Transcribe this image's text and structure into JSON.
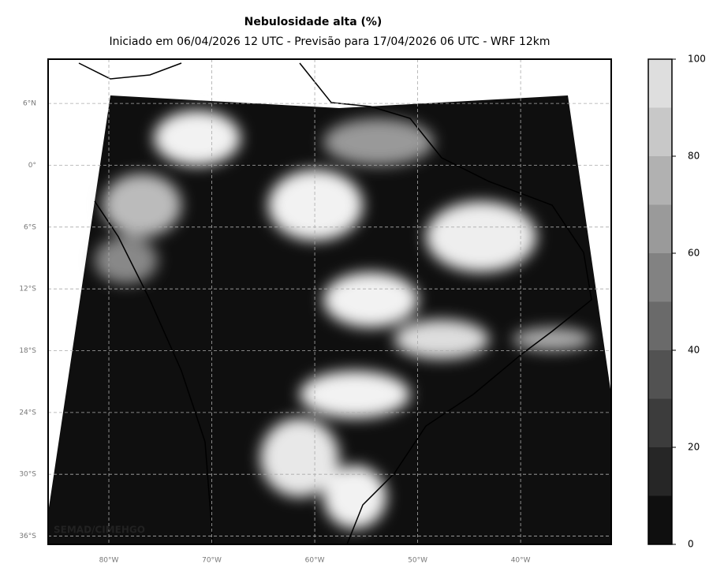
{
  "title": "Nebulosidade alta (%)",
  "subtitle": "Iniciado em 06/04/2026 12 UTC - Previsão para 17/04/2026 06 UTC - WRF 12km",
  "watermark": "SEMAD/CIMEHGO",
  "map": {
    "xlim": [
      -85.9,
      -31.2
    ],
    "ylim": [
      -36.8,
      10.3
    ],
    "lon_ticks": [
      {
        "value": -80,
        "label": "80°W"
      },
      {
        "value": -70,
        "label": "70°W"
      },
      {
        "value": -60,
        "label": "60°W"
      },
      {
        "value": -50,
        "label": "50°W"
      },
      {
        "value": -40,
        "label": "40°W"
      }
    ],
    "lat_ticks": [
      {
        "value": 6,
        "label": "6°N"
      },
      {
        "value": 0,
        "label": "0°"
      },
      {
        "value": -6,
        "label": "6°S"
      },
      {
        "value": -12,
        "label": "12°S"
      },
      {
        "value": -18,
        "label": "18°S"
      },
      {
        "value": -24,
        "label": "24°S"
      },
      {
        "value": -30,
        "label": "30°S"
      },
      {
        "value": -36,
        "label": "36°S"
      }
    ],
    "grid": true
  },
  "colorbar": {
    "levels": [
      0,
      10,
      20,
      30,
      40,
      50,
      60,
      70,
      80,
      90,
      100
    ],
    "colors": [
      "#0f0f0f",
      "#262626",
      "#3c3c3c",
      "#525252",
      "#6a6a6a",
      "#828282",
      "#9a9a9a",
      "#b1b1b1",
      "#c8c8c8",
      "#dedede",
      "#f2f2f2"
    ],
    "ticks": [
      0,
      20,
      40,
      60,
      80,
      100
    ]
  }
}
